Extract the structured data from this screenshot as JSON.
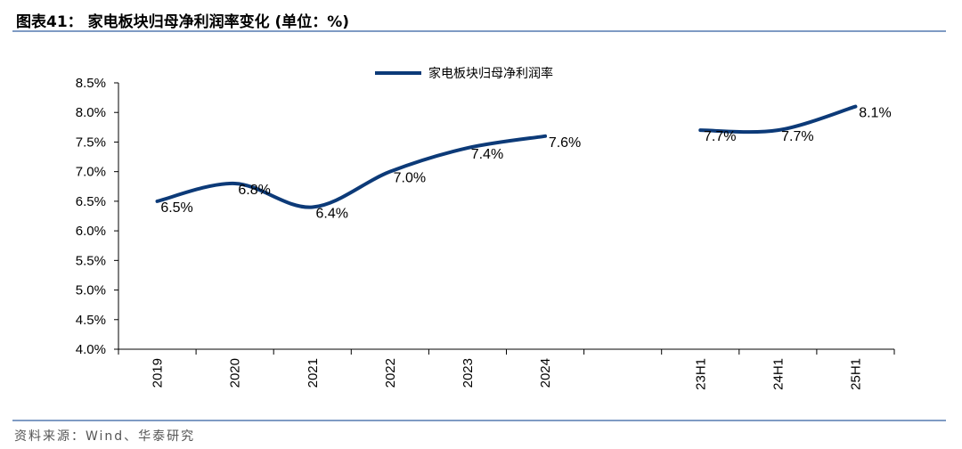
{
  "header": {
    "title": "图表41： 家电板块归母净利润率变化 (单位：%)"
  },
  "footer": {
    "source": "资料来源：Wind、华泰研究"
  },
  "chart_data": {
    "type": "line",
    "categories": [
      "2019",
      "2020",
      "2021",
      "2022",
      "2023",
      "2024",
      "",
      "23H1",
      "24H1",
      "25H1"
    ],
    "series": [
      {
        "name": "家电板块归母净利润率",
        "values": [
          6.5,
          6.8,
          6.4,
          7.0,
          7.4,
          7.6,
          null,
          7.7,
          7.7,
          8.1
        ],
        "labels": [
          "6.5%",
          "6.8%",
          "6.4%",
          "7.0%",
          "7.4%",
          "7.6%",
          "",
          "7.7%",
          "7.7%",
          "8.1%"
        ],
        "color": "#0c3a78"
      }
    ],
    "y_ticks": [
      "4.0%",
      "4.5%",
      "5.0%",
      "5.5%",
      "6.0%",
      "6.5%",
      "7.0%",
      "7.5%",
      "8.0%",
      "8.5%"
    ],
    "ylim": [
      4.0,
      8.5
    ],
    "ytick_step": 0.5,
    "grid": false,
    "legend_position": "top"
  }
}
